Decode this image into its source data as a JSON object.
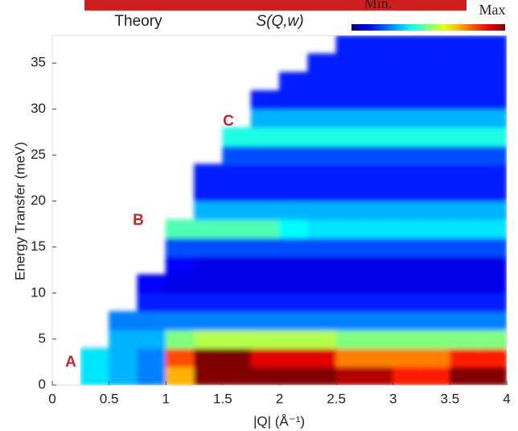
{
  "chart_data": {
    "type": "heatmap",
    "title": "Theory",
    "subtitle": "S(Q,w)",
    "xlabel": "|Q| (Å⁻¹)",
    "ylabel": "Energy Transfer (meV)",
    "colorbar_labels": [
      "Min.",
      "Max"
    ],
    "colormap": "jet",
    "annotations": [
      "A",
      "B",
      "C"
    ],
    "annotation_color": "#c0282d",
    "xlim": [
      0,
      4
    ],
    "xticks": [
      0,
      0.5,
      1,
      1.5,
      2,
      2.5,
      3,
      3.5,
      4
    ],
    "ylim": [
      0,
      38
    ],
    "yticks": [
      0,
      5,
      10,
      15,
      20,
      25,
      30,
      35
    ],
    "z": [
      [
        null,
        0.35,
        0.3,
        0.25,
        0.7,
        1,
        1,
        1,
        1,
        1,
        0.95,
        0.95,
        0.85,
        0.85,
        1,
        1
      ],
      [
        null,
        0.35,
        0.3,
        0.25,
        0.8,
        1,
        1,
        0.9,
        0.9,
        0.9,
        0.75,
        0.75,
        0.75,
        0.75,
        0.85,
        0.85
      ],
      [
        null,
        null,
        0.3,
        0.3,
        0.5,
        0.55,
        0.55,
        0.55,
        0.55,
        0.55,
        0.5,
        0.5,
        0.5,
        0.5,
        0.5,
        0.5
      ],
      [
        null,
        null,
        0.25,
        0.25,
        0.25,
        0.25,
        0.25,
        0.25,
        0.25,
        0.25,
        0.25,
        0.25,
        0.25,
        0.25,
        0.25,
        0.25
      ],
      [
        null,
        null,
        null,
        0.15,
        0.15,
        0.15,
        0.15,
        0.15,
        0.15,
        0.15,
        0.15,
        0.15,
        0.15,
        0.15,
        0.15,
        0.15
      ],
      [
        null,
        null,
        null,
        0.12,
        0.1,
        0.1,
        0.1,
        0.1,
        0.1,
        0.1,
        0.1,
        0.1,
        0.1,
        0.1,
        0.1,
        0.1
      ],
      [
        null,
        null,
        null,
        null,
        0.12,
        0.1,
        0.1,
        0.1,
        0.1,
        0.1,
        0.1,
        0.1,
        0.1,
        0.1,
        0.1,
        0.1
      ],
      [
        null,
        null,
        null,
        null,
        0.2,
        0.2,
        0.2,
        0.2,
        0.2,
        0.2,
        0.2,
        0.2,
        0.2,
        0.2,
        0.2,
        0.2
      ],
      [
        null,
        null,
        null,
        null,
        0.45,
        0.45,
        0.45,
        0.45,
        0.38,
        0.35,
        0.35,
        0.35,
        0.35,
        0.35,
        0.35,
        0.35
      ],
      [
        null,
        null,
        null,
        null,
        null,
        0.3,
        0.3,
        0.3,
        0.3,
        0.3,
        0.3,
        0.3,
        0.3,
        0.3,
        0.3,
        0.3
      ],
      [
        null,
        null,
        null,
        null,
        null,
        0.15,
        0.15,
        0.15,
        0.15,
        0.15,
        0.15,
        0.15,
        0.15,
        0.15,
        0.15,
        0.15
      ],
      [
        null,
        null,
        null,
        null,
        null,
        0.15,
        0.15,
        0.15,
        0.15,
        0.15,
        0.15,
        0.15,
        0.15,
        0.15,
        0.15,
        0.15
      ],
      [
        null,
        null,
        null,
        null,
        null,
        null,
        0.2,
        0.2,
        0.2,
        0.2,
        0.2,
        0.2,
        0.2,
        0.2,
        0.2,
        0.2
      ],
      [
        null,
        null,
        null,
        null,
        null,
        null,
        0.4,
        0.4,
        0.4,
        0.4,
        0.4,
        0.4,
        0.4,
        0.4,
        0.4,
        0.4
      ],
      [
        null,
        null,
        null,
        null,
        null,
        null,
        null,
        0.3,
        0.3,
        0.3,
        0.3,
        0.3,
        0.3,
        0.3,
        0.3,
        0.3
      ],
      [
        null,
        null,
        null,
        null,
        null,
        null,
        null,
        0.15,
        0.15,
        0.15,
        0.15,
        0.15,
        0.15,
        0.15,
        0.15,
        0.15
      ],
      [
        null,
        null,
        null,
        null,
        null,
        null,
        null,
        null,
        0.15,
        0.15,
        0.15,
        0.15,
        0.15,
        0.15,
        0.15,
        0.15
      ],
      [
        null,
        null,
        null,
        null,
        null,
        null,
        null,
        null,
        null,
        0.15,
        0.15,
        0.15,
        0.15,
        0.15,
        0.15,
        0.15
      ],
      [
        null,
        null,
        null,
        null,
        null,
        null,
        null,
        null,
        null,
        null,
        0.15,
        0.15,
        0.15,
        0.15,
        0.15,
        0.15
      ]
    ]
  }
}
